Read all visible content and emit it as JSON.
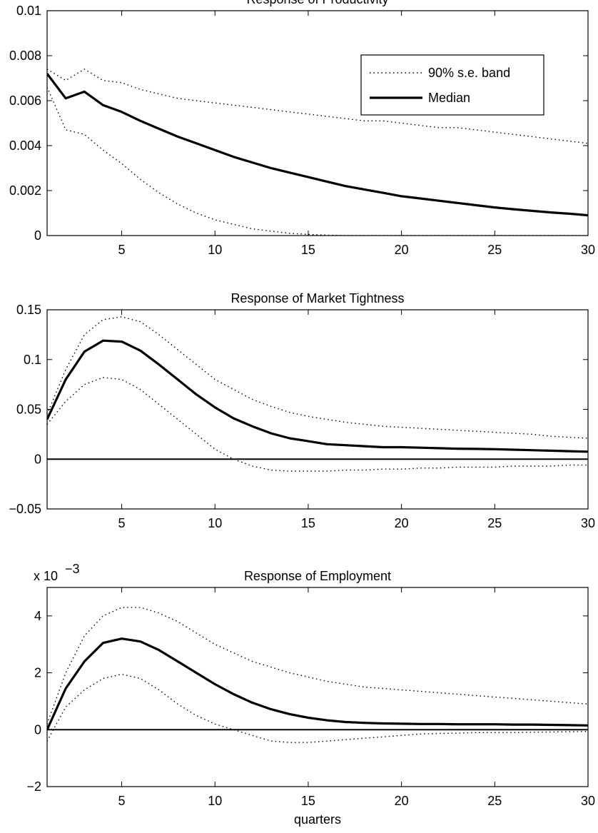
{
  "chart_data": [
    {
      "type": "line",
      "title": "Response of Productivity",
      "xlabel": "",
      "ylabel": "",
      "xlim": [
        1,
        30
      ],
      "ylim": [
        0,
        0.01
      ],
      "xticks": [
        5,
        10,
        15,
        20,
        25,
        30
      ],
      "yticks": [
        "0",
        "0.002",
        "0.004",
        "0.006",
        "0.008",
        "0.01"
      ],
      "ytick_values": [
        0,
        0.002,
        0.004,
        0.006,
        0.008,
        0.01
      ],
      "exponent_label": "",
      "zero_line": false,
      "legend": {
        "location": "top-right",
        "entries": [
          "90% s.e. band",
          "Median"
        ]
      },
      "x": [
        1,
        2,
        3,
        4,
        5,
        6,
        7,
        8,
        9,
        10,
        11,
        12,
        13,
        14,
        15,
        16,
        17,
        18,
        19,
        20,
        21,
        22,
        23,
        24,
        25,
        26,
        27,
        28,
        29,
        30
      ],
      "series": [
        {
          "name": "Median",
          "style": "solid",
          "values": [
            0.0072,
            0.0061,
            0.0064,
            0.0058,
            0.0055,
            0.0051,
            0.00475,
            0.0044,
            0.0041,
            0.0038,
            0.0035,
            0.00325,
            0.003,
            0.0028,
            0.0026,
            0.0024,
            0.0022,
            0.00205,
            0.0019,
            0.00175,
            0.00165,
            0.00155,
            0.00145,
            0.00135,
            0.00125,
            0.00117,
            0.0011,
            0.00103,
            0.00097,
            0.0009
          ]
        },
        {
          "name": "90% s.e. band",
          "style": "dotted",
          "values": [
            0.0074,
            0.0069,
            0.0074,
            0.0069,
            0.0068,
            0.0065,
            0.0063,
            0.0061,
            0.006,
            0.0059,
            0.0058,
            0.0057,
            0.0056,
            0.0055,
            0.0054,
            0.0053,
            0.0052,
            0.0051,
            0.0051,
            0.005,
            0.0049,
            0.0048,
            0.0048,
            0.0047,
            0.0046,
            0.0045,
            0.0044,
            0.0043,
            0.0042,
            0.0041
          ]
        },
        {
          "name": "",
          "style": "dotted",
          "values": [
            0.0066,
            0.0047,
            0.0045,
            0.0038,
            0.0032,
            0.0025,
            0.0019,
            0.0014,
            0.001,
            0.0007,
            0.0005,
            0.0003,
            0.0002,
            0.0001,
            5e-05,
            2e-05,
            0,
            0,
            0,
            0,
            0,
            0,
            0,
            0,
            0,
            0,
            0,
            0,
            0,
            0
          ]
        }
      ]
    },
    {
      "type": "line",
      "title": "Response of Market Tightness",
      "xlabel": "",
      "ylabel": "",
      "xlim": [
        1,
        30
      ],
      "ylim": [
        -0.05,
        0.15
      ],
      "xticks": [
        5,
        10,
        15,
        20,
        25,
        30
      ],
      "yticks": [
        "−0.05",
        "0",
        "0.05",
        "0.1",
        "0.15"
      ],
      "ytick_values": [
        -0.05,
        0,
        0.05,
        0.1,
        0.15
      ],
      "exponent_label": "",
      "zero_line": true,
      "x": [
        1,
        2,
        3,
        4,
        5,
        6,
        7,
        8,
        9,
        10,
        11,
        12,
        13,
        14,
        15,
        16,
        17,
        18,
        19,
        20,
        21,
        22,
        23,
        24,
        25,
        26,
        27,
        28,
        29,
        30
      ],
      "series": [
        {
          "name": "Median",
          "style": "solid",
          "values": [
            0.04,
            0.08,
            0.108,
            0.119,
            0.118,
            0.109,
            0.095,
            0.08,
            0.065,
            0.052,
            0.041,
            0.033,
            0.026,
            0.021,
            0.018,
            0.015,
            0.014,
            0.013,
            0.012,
            0.012,
            0.0115,
            0.011,
            0.0105,
            0.0103,
            0.01,
            0.0095,
            0.009,
            0.0085,
            0.008,
            0.0075
          ]
        },
        {
          "name": "90% s.e. band",
          "style": "dotted",
          "values": [
            0.045,
            0.09,
            0.125,
            0.14,
            0.143,
            0.138,
            0.125,
            0.11,
            0.095,
            0.08,
            0.07,
            0.06,
            0.053,
            0.047,
            0.043,
            0.04,
            0.037,
            0.035,
            0.033,
            0.032,
            0.031,
            0.03,
            0.029,
            0.028,
            0.027,
            0.026,
            0.025,
            0.023,
            0.022,
            0.021
          ]
        },
        {
          "name": "",
          "style": "dotted",
          "values": [
            0.035,
            0.058,
            0.075,
            0.082,
            0.08,
            0.07,
            0.055,
            0.04,
            0.025,
            0.01,
            0,
            -0.007,
            -0.011,
            -0.012,
            -0.012,
            -0.012,
            -0.011,
            -0.011,
            -0.01,
            -0.01,
            -0.009,
            -0.009,
            -0.008,
            -0.008,
            -0.008,
            -0.007,
            -0.007,
            -0.007,
            -0.006,
            -0.006
          ]
        }
      ]
    },
    {
      "type": "line",
      "title": "Response of Employment",
      "xlabel": "quarters",
      "ylabel": "",
      "xlim": [
        1,
        30
      ],
      "ylim": [
        -2,
        5
      ],
      "xticks": [
        5,
        10,
        15,
        20,
        25,
        30
      ],
      "yticks": [
        "−2",
        "0",
        "2",
        "4"
      ],
      "ytick_values": [
        -2,
        0,
        2,
        4
      ],
      "exponent_label": "x 10",
      "exponent_power": "−3",
      "zero_line": true,
      "x": [
        1,
        2,
        3,
        4,
        5,
        6,
        7,
        8,
        9,
        10,
        11,
        12,
        13,
        14,
        15,
        16,
        17,
        18,
        19,
        20,
        21,
        22,
        23,
        24,
        25,
        26,
        27,
        28,
        29,
        30
      ],
      "series": [
        {
          "name": "Median",
          "style": "solid",
          "values": [
            0,
            1.45,
            2.4,
            3.05,
            3.2,
            3.1,
            2.8,
            2.4,
            2,
            1.6,
            1.25,
            0.95,
            0.72,
            0.55,
            0.42,
            0.33,
            0.27,
            0.24,
            0.22,
            0.21,
            0.2,
            0.2,
            0.19,
            0.19,
            0.19,
            0.18,
            0.18,
            0.17,
            0.16,
            0.15
          ]
        },
        {
          "name": "90% s.e. band",
          "style": "dotted",
          "values": [
            0.2,
            2,
            3.3,
            4,
            4.3,
            4.3,
            4.1,
            3.8,
            3.4,
            3,
            2.7,
            2.4,
            2.2,
            2,
            1.85,
            1.7,
            1.6,
            1.5,
            1.45,
            1.4,
            1.35,
            1.3,
            1.25,
            1.2,
            1.15,
            1.1,
            1.05,
            1,
            0.95,
            0.9
          ]
        },
        {
          "name": "",
          "style": "dotted",
          "values": [
            -0.4,
            0.8,
            1.4,
            1.8,
            1.95,
            1.8,
            1.4,
            0.9,
            0.5,
            0.2,
            0,
            -0.2,
            -0.4,
            -0.45,
            -0.45,
            -0.4,
            -0.35,
            -0.3,
            -0.25,
            -0.2,
            -0.15,
            -0.13,
            -0.12,
            -0.1,
            -0.1,
            -0.1,
            -0.09,
            -0.08,
            -0.07,
            -0.06
          ]
        }
      ]
    }
  ]
}
